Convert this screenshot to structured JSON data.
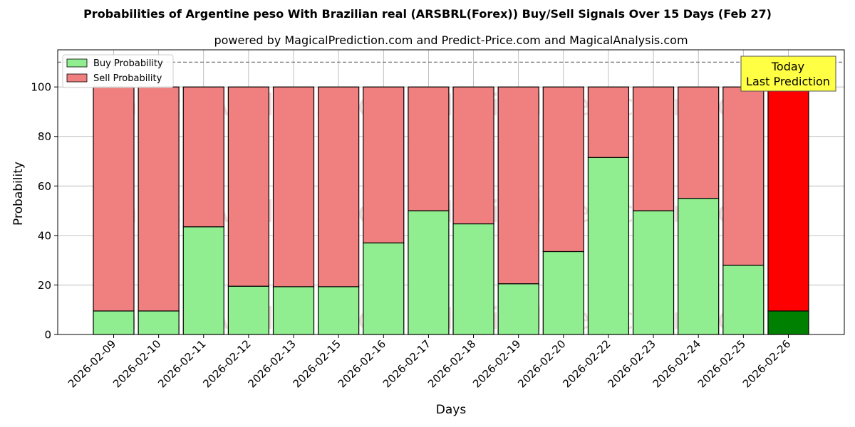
{
  "chart_data": {
    "type": "bar",
    "stacked": true,
    "title": "Probabilities of Argentine peso With Brazilian real (ARSBRL(Forex)) Buy/Sell Signals Over 15 Days (Feb 27)",
    "subtitle": "powered by MagicalPrediction.com and Predict-Price.com and MagicalAnalysis.com",
    "xlabel": "Days",
    "ylabel": "Probability",
    "ylim": [
      0,
      115
    ],
    "yticks": [
      0,
      20,
      40,
      60,
      80,
      100
    ],
    "reference_line": 110,
    "grid": true,
    "legend_position": "top-left",
    "categories": [
      "2026-02-09",
      "2026-02-10",
      "2026-02-11",
      "2026-02-12",
      "2026-02-13",
      "2026-02-15",
      "2026-02-16",
      "2026-02-17",
      "2026-02-18",
      "2026-02-19",
      "2026-02-20",
      "2026-02-22",
      "2026-02-23",
      "2026-02-24",
      "2026-02-25",
      "2026-02-26"
    ],
    "series": [
      {
        "name": "Buy Probability",
        "color": "#90ee90",
        "values": [
          9.5,
          9.5,
          43.5,
          19.5,
          19.3,
          19.3,
          37,
          50,
          44.7,
          20.5,
          33.5,
          71.5,
          50,
          55,
          28,
          9.5
        ]
      },
      {
        "name": "Sell Probability",
        "color": "#f08080",
        "values": [
          90.5,
          90.5,
          56.5,
          80.5,
          80.7,
          80.7,
          63,
          50,
          55.3,
          79.5,
          66.5,
          28.5,
          50,
          45,
          72,
          90.5
        ]
      }
    ],
    "highlight": {
      "index": 15,
      "buy_color": "#008000",
      "sell_color": "#ff0000"
    },
    "annotation": {
      "lines": [
        "Today",
        "Last Prediction"
      ],
      "background": "#ffff44"
    },
    "watermarks": [
      "MagicalAnalysis.com",
      "MagicalPrediction.com"
    ]
  }
}
